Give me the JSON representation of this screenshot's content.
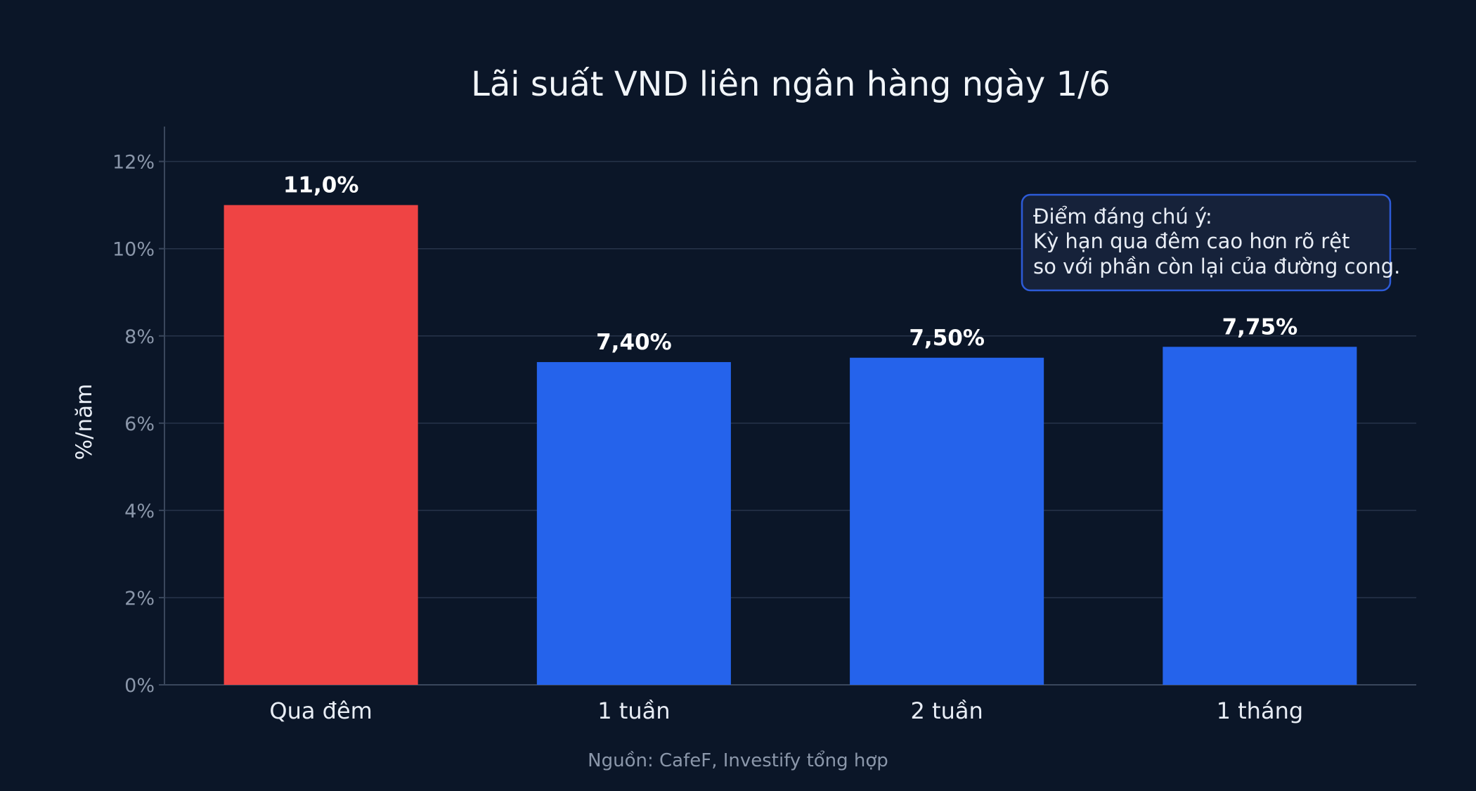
{
  "chart_data": {
    "type": "bar",
    "title": "Lãi suất VND liên ngân hàng ngày 1/6",
    "xlabel": "",
    "ylabel": "%/năm",
    "categories": [
      "Qua đêm",
      "1 tuần",
      "2 tuần",
      "1 tháng"
    ],
    "values": [
      11.0,
      7.4,
      7.5,
      7.75
    ],
    "value_labels": [
      "11,0%",
      "7,40%",
      "7,50%",
      "7,75%"
    ],
    "bar_colors": [
      "#ef4444",
      "#2563eb",
      "#2563eb",
      "#2563eb"
    ],
    "ylim": [
      0,
      12.8
    ],
    "yticks": [
      0,
      2,
      4,
      6,
      8,
      10,
      12
    ],
    "ytick_labels": [
      "0%",
      "2%",
      "4%",
      "6%",
      "8%",
      "10%",
      "12%"
    ],
    "grid": true,
    "legend": "none",
    "annotation": {
      "lines": [
        "Điểm đáng chú ý:",
        "Kỳ hạn qua đêm cao hơn rõ rệt",
        "so với phần còn lại của đường cong."
      ],
      "placement": "top-right"
    },
    "source": "Nguồn: CafeF, Investify tổng hợp"
  },
  "colors": {
    "background": "#0b1628",
    "highlight_bar": "#ef4444",
    "regular_bar": "#2563eb",
    "grid": "#27344a",
    "annotation_border": "#2d5bd8",
    "annotation_fill": "#16223a"
  }
}
